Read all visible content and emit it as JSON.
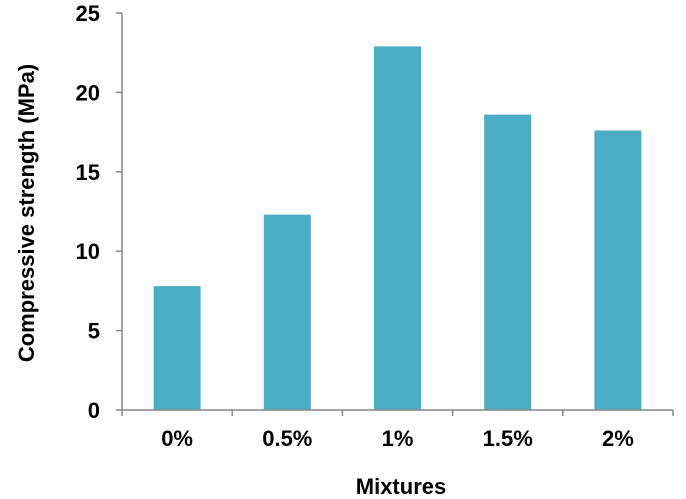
{
  "chart_data": {
    "type": "bar",
    "title": "",
    "xlabel": "Mixtures",
    "ylabel": "Compressive strength (MPa)",
    "categories": [
      "0%",
      "0.5%",
      "1%",
      "1.5%",
      "2%"
    ],
    "values": [
      7.8,
      12.3,
      22.9,
      18.6,
      17.6
    ],
    "ylim": [
      0,
      25
    ],
    "yticks": [
      0,
      5,
      10,
      15,
      20,
      25
    ],
    "ytick_labels": [
      "0",
      "5",
      "10",
      "15",
      "20",
      "25"
    ],
    "grid": false,
    "legend": "none",
    "colors": {
      "bar": "#4BACC6",
      "axis": "#868686",
      "text": "#000000"
    }
  }
}
